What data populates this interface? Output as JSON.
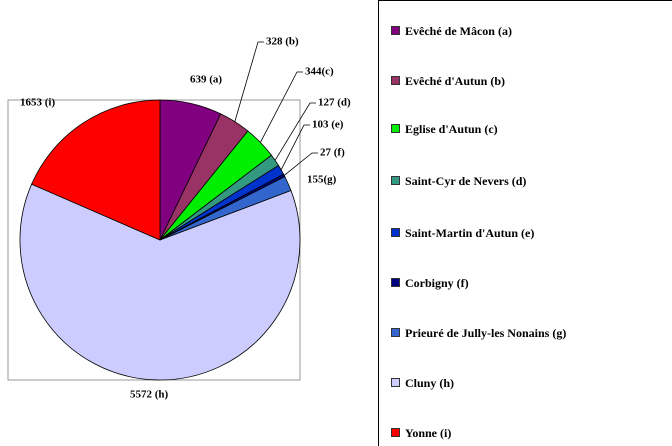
{
  "chart_data": {
    "type": "pie",
    "categories": [
      "Evêché de Mâcon (a)",
      "Evêché d'Autun (b)",
      "Eglise d'Autun (c)",
      "Saint-Cyr de Nevers (d)",
      "Saint-Martin d'Autun (e)",
      "Corbigny (f)",
      "Prieuré de Jully-les Nonains (g)",
      "Cluny (h)",
      "Yonne (i)"
    ],
    "values": [
      639,
      328,
      344,
      127,
      103,
      27,
      155,
      5572,
      1653
    ],
    "value_labels": [
      "639 (a)",
      "328 (b)",
      "344(c)",
      "127 (d)",
      "103 (e)",
      "27 (f)",
      "155(g)",
      "5572 (h)",
      "1653 (i)"
    ],
    "colors": [
      "#800080",
      "#993366",
      "#00ee00",
      "#339980",
      "#0033cc",
      "#000080",
      "#3366cc",
      "#ccccff",
      "#ff0000"
    ],
    "legend": "right"
  }
}
